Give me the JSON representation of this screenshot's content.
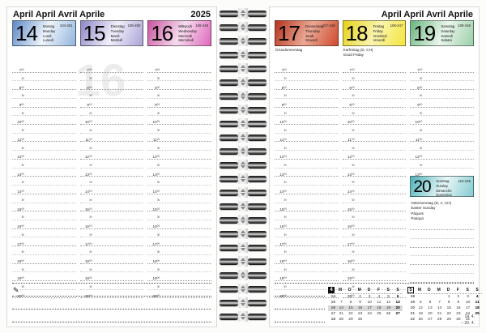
{
  "pages": {
    "left": {
      "title": "April April Avril Aprile",
      "year": "2025",
      "week_watermark": "16",
      "days": [
        {
          "num": "14",
          "names": [
            "Montag",
            "Monday",
            "Lundi",
            "Lunedì"
          ],
          "code": "104-251",
          "holidays": [],
          "gradient": [
            "#5d89c7",
            "#eef4fb",
            "#93b4dd"
          ]
        },
        {
          "num": "15",
          "names": [
            "Dienstag",
            "Tuesday",
            "Mardi",
            "Martedì"
          ],
          "code": "105-250",
          "holidays": [],
          "gradient": [
            "#8d87c6",
            "#f1effa",
            "#aaa4d6"
          ]
        },
        {
          "num": "16",
          "names": [
            "Mittwoch",
            "Wednesday",
            "Mercredi",
            "Mercoledì"
          ],
          "code": "106-249",
          "holidays": [],
          "gradient": [
            "#c9559f",
            "#f6dcee",
            "#df67ba"
          ]
        }
      ]
    },
    "right": {
      "title": "April April Avril Aprile",
      "days": [
        {
          "num": "17",
          "names": [
            "Donnerstag",
            "Thursday",
            "Jeudi",
            "Giovedì"
          ],
          "code": "107-248",
          "holidays": [
            "Gründonnerstag"
          ],
          "gradient": [
            "#b5341f",
            "#eba893",
            "#cf4b30"
          ]
        },
        {
          "num": "18",
          "names": [
            "Freitag",
            "Friday",
            "Vendredi",
            "Venerdì"
          ],
          "code": "108-247",
          "holidays": [
            "Karfreitag (D, CH)",
            "Good Friday"
          ],
          "gradient": [
            "#e6d216",
            "#faf4b0",
            "#f3e63c"
          ]
        },
        {
          "num": "19",
          "names": [
            "Samstag",
            "Saturday",
            "Samedi",
            "Sabato"
          ],
          "code": "109-246",
          "holidays": [],
          "gradient": [
            "#69b57e",
            "#eaf6ec",
            "#9ccfaa"
          ]
        }
      ],
      "day20": {
        "num": "20",
        "names": [
          "Sonntag",
          "Sunday",
          "Dimanche",
          "Domenica"
        ],
        "code": "110-245",
        "holidays": [
          "Ostersonntag (D, A, CH)",
          "Easter Sunday",
          "Pâques",
          "Pasqua"
        ],
        "gradient": [
          "#4fb3ba",
          "#e8f6f7",
          "#86ccd1"
        ]
      },
      "mini_calendars": [
        {
          "month_number": "4",
          "style": "filled",
          "weekday_headers": [
            "M",
            "D",
            "M",
            "D",
            "F",
            "S",
            "S"
          ],
          "highlight_week": "16",
          "highlight_color": "#d9d9d9",
          "weeks": [
            {
              "week": "14",
              "days": [
                "",
                "1",
                "2",
                "3",
                "4",
                "5",
                "6"
              ]
            },
            {
              "week": "15",
              "days": [
                "7",
                "8",
                "9",
                "10",
                "11",
                "12",
                "13"
              ]
            },
            {
              "week": "16",
              "days": [
                "14",
                "15",
                "16",
                "17",
                "18",
                "19",
                "20"
              ]
            },
            {
              "week": "17",
              "days": [
                "21",
                "22",
                "23",
                "24",
                "25",
                "26",
                "27"
              ]
            },
            {
              "week": "18",
              "days": [
                "28",
                "29",
                "30",
                "",
                "",
                "",
                ""
              ]
            }
          ]
        },
        {
          "month_number": "5",
          "style": "outlined",
          "weekday_headers": [
            "M",
            "D",
            "M",
            "D",
            "F",
            "S",
            "S"
          ],
          "highlight_week": "",
          "highlight_color": "#d9d9d9",
          "weeks": [
            {
              "week": "18",
              "days": [
                "",
                "",
                "",
                "1",
                "2",
                "3",
                "4"
              ]
            },
            {
              "week": "19",
              "days": [
                "5",
                "6",
                "7",
                "8",
                "9",
                "10",
                "11"
              ]
            },
            {
              "week": "20",
              "days": [
                "12",
                "13",
                "14",
                "15",
                "16",
                "17",
                "18"
              ]
            },
            {
              "week": "21",
              "days": [
                "19",
                "20",
                "21",
                "22",
                "23",
                "24",
                "25"
              ]
            },
            {
              "week": "22",
              "days": [
                "26",
                "27",
                "28",
                "29",
                "30",
                "31",
                ""
              ]
            }
          ]
        }
      ],
      "date_range_lines": [
        "14. 4.",
        "– 20. 4."
      ]
    }
  },
  "time_labels": [
    "7⁰⁰",
    "³⁰",
    "8⁰⁰",
    "³⁰",
    "9⁰⁰",
    "³⁰",
    "10⁰⁰",
    "³⁰",
    "11⁰⁰",
    "³⁰",
    "12⁰⁰",
    "³⁰",
    "13⁰⁰",
    "³⁰",
    "14⁰⁰",
    "³⁰",
    "15⁰⁰",
    "³⁰",
    "16⁰⁰",
    "³⁰",
    "17⁰⁰",
    "³⁰",
    "18⁰⁰",
    "³⁰",
    "19⁰⁰",
    "³⁰",
    "20⁰⁰"
  ],
  "icons": {
    "pencil": "✎"
  }
}
